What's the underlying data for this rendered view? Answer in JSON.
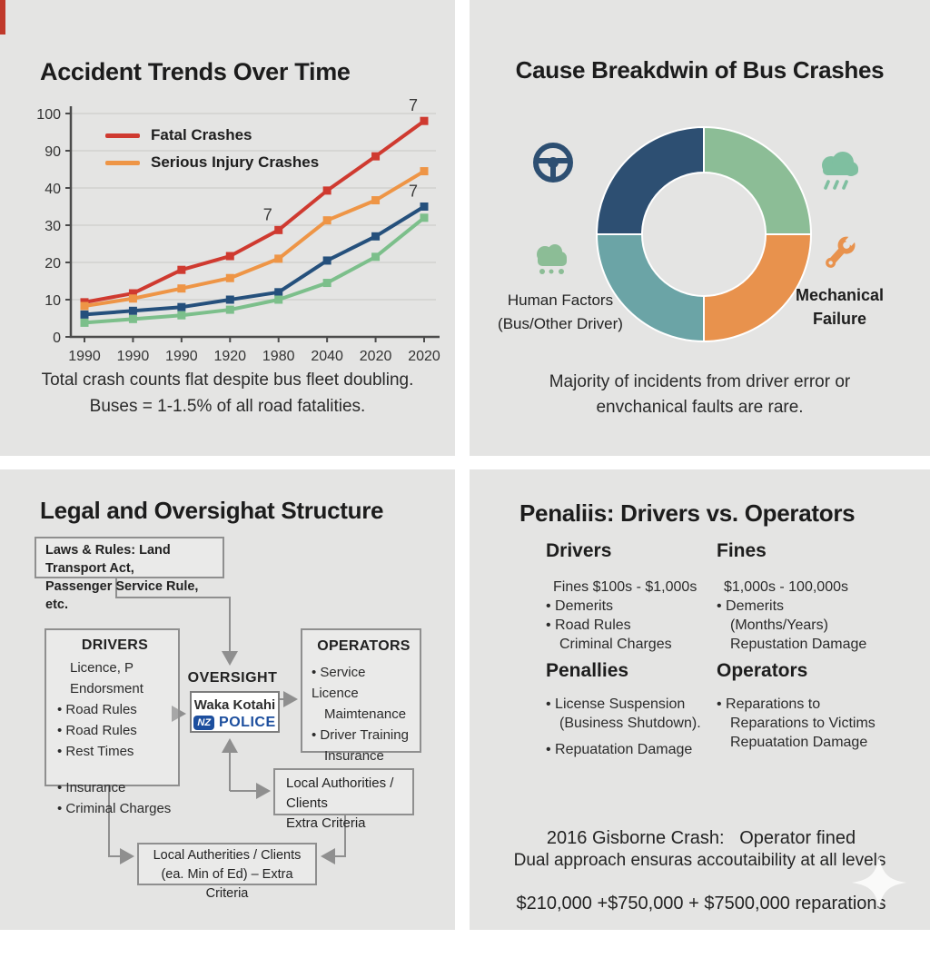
{
  "colors": {
    "bg_page": "#ffffff",
    "bg_quad": "#e4e4e3",
    "text": "#1c1c1c",
    "text_soft": "#2a2a2a",
    "axis": "#4b4b4b",
    "grid": "#d2d2d0",
    "border": "#8f8f8f",
    "red": "#cf3a30",
    "orange": "#ee9546",
    "navy": "#25507c",
    "green": "#7cbf8b",
    "donut_navy": "#2d4f72",
    "donut_green": "#8cbd96",
    "donut_orange": "#e8924d",
    "donut_teal": "#6ba4a6",
    "icon_teal": "#7fbfa0",
    "police_blue": "#1d4f9e"
  },
  "panels": {
    "accident_trends": {
      "title": "Accident Trends Over Time",
      "caption": [
        "Total crash counts flat despite bus fleet doubling.",
        "Buses = 1-1.5% of all road fatalities."
      ],
      "chart_data": {
        "type": "line",
        "title": "Accident Trends Over Time",
        "x_tick_labels": [
          "1990",
          "1990",
          "1990",
          "1920",
          "1980",
          "2040",
          "2020",
          "2020"
        ],
        "y_tick_labels_bottom_to_top": [
          "0",
          "10",
          "20",
          "30",
          "40",
          "90",
          "100"
        ],
        "y_axis_note": "tick labels printed exactly as shown, evenly spaced; series y values are in tick-slot units (1 slot = 1 gridline gap)",
        "grid": true,
        "legend_position": "top-left-inside",
        "marker": "square",
        "series": [
          {
            "name": "Fatal Crashes",
            "color": "#cf3a30",
            "y_slots": [
              0.93,
              1.17,
              1.8,
              2.17,
              2.87,
              3.93,
              4.85,
              5.8
            ]
          },
          {
            "name": "Serious Injury Crashes",
            "color": "#ee9546",
            "y_slots": [
              0.83,
              1.03,
              1.3,
              1.58,
              2.1,
              3.13,
              3.67,
              4.45
            ]
          },
          {
            "name": "",
            "color": "#25507c",
            "y_slots": [
              0.6,
              0.7,
              0.8,
              1.0,
              1.2,
              2.05,
              2.7,
              3.5
            ]
          },
          {
            "name": "",
            "color": "#7cbf8b",
            "y_slots": [
              0.38,
              0.48,
              0.58,
              0.73,
              1.0,
              1.45,
              2.15,
              3.2
            ]
          }
        ],
        "annotations": [
          {
            "text": "7",
            "series_index": 0,
            "point_index": 4
          },
          {
            "text": "7",
            "series_index": 0,
            "point_index": 7
          },
          {
            "text": "7",
            "series_index": 2,
            "point_index": 7
          }
        ]
      }
    },
    "cause_breakdown": {
      "title": "Cause Breakdwin of Bus Crashes",
      "left_label": [
        "Human Factors",
        "(Bus/Other Driver)"
      ],
      "right_label": [
        "Mechanical",
        "Failure"
      ],
      "caption": [
        "Majority of incidents from driver error or",
        "envchanical faults are rare."
      ],
      "icons": [
        "steering-wheel",
        "bus",
        "cloud-rain",
        "wrench"
      ],
      "chart_data": {
        "type": "pie",
        "donut": true,
        "slices": [
          {
            "position": "top-left",
            "value": 25,
            "color": "#2d4f72",
            "start_deg": 270,
            "end_deg": 360
          },
          {
            "position": "top-right",
            "value": 25,
            "color": "#8cbd96",
            "start_deg": 0,
            "end_deg": 90
          },
          {
            "position": "bottom-right",
            "value": 25,
            "color": "#e8924d",
            "start_deg": 90,
            "end_deg": 180
          },
          {
            "position": "bottom-left",
            "value": 25,
            "color": "#6ba4a6",
            "start_deg": 180,
            "end_deg": 270
          }
        ],
        "labels_visible": [
          "Human Factors (Bus/Other Driver)",
          "Mechanical Failure"
        ]
      }
    },
    "legal_structure": {
      "title": "Legal and Oversighat Structure",
      "laws_box": [
        "Laws & Rules: Land Transport Act,",
        "Passenger Service Rule, etc."
      ],
      "drivers_box": {
        "title": "DRIVERS",
        "lines": [
          "Licence, P Endorsment",
          "• Road Rules",
          "• Road Rules",
          "• Rest Times",
          "• Insurance",
          "• Criminal Charges"
        ]
      },
      "oversight_label": "OVERSIGHT",
      "oversight_box": {
        "org": "Waka Kotahi",
        "badge": "NZ",
        "org2": "POLICE"
      },
      "operators_box": {
        "title": "OPERATORS",
        "lines": [
          "• Service Licence",
          "Maimtenance",
          "• Driver Training",
          "Insurance"
        ]
      },
      "authorities_box": [
        "Local Authorities / Clients",
        "Extra Criteria"
      ],
      "authorities_box2": [
        "Local Autherities / Clients",
        "(ea. Min of Ed) – Extra Criteria"
      ]
    },
    "penalties": {
      "title": "Penaliis: Drivers vs. Operators",
      "sections": [
        {
          "heading": "Drivers",
          "lines": [
            "Fines $100s - $1,000s",
            "• Demerits",
            "• Road Rules",
            "Criminal Charges"
          ]
        },
        {
          "heading": "Fines",
          "lines": [
            "$1,000s - 100,000s",
            "• Demerits",
            "(Months/Years)",
            "Repustation Damage"
          ]
        },
        {
          "heading": "Penallies",
          "lines": [
            "• License Suspension",
            "(Business Shutdown).",
            "• Repuatation Damage"
          ]
        },
        {
          "heading": "Operators",
          "lines": [
            "• Reparations to",
            "Reparations to Victims",
            "Repuatation Damage"
          ]
        }
      ],
      "case_note": [
        "2016 Gisborne Crash:   Operator fined",
        "$210,000 +$750,000 + $7500,000 reparations"
      ],
      "footer": "Dual approach ensuras accoutaibility at all levels"
    }
  }
}
